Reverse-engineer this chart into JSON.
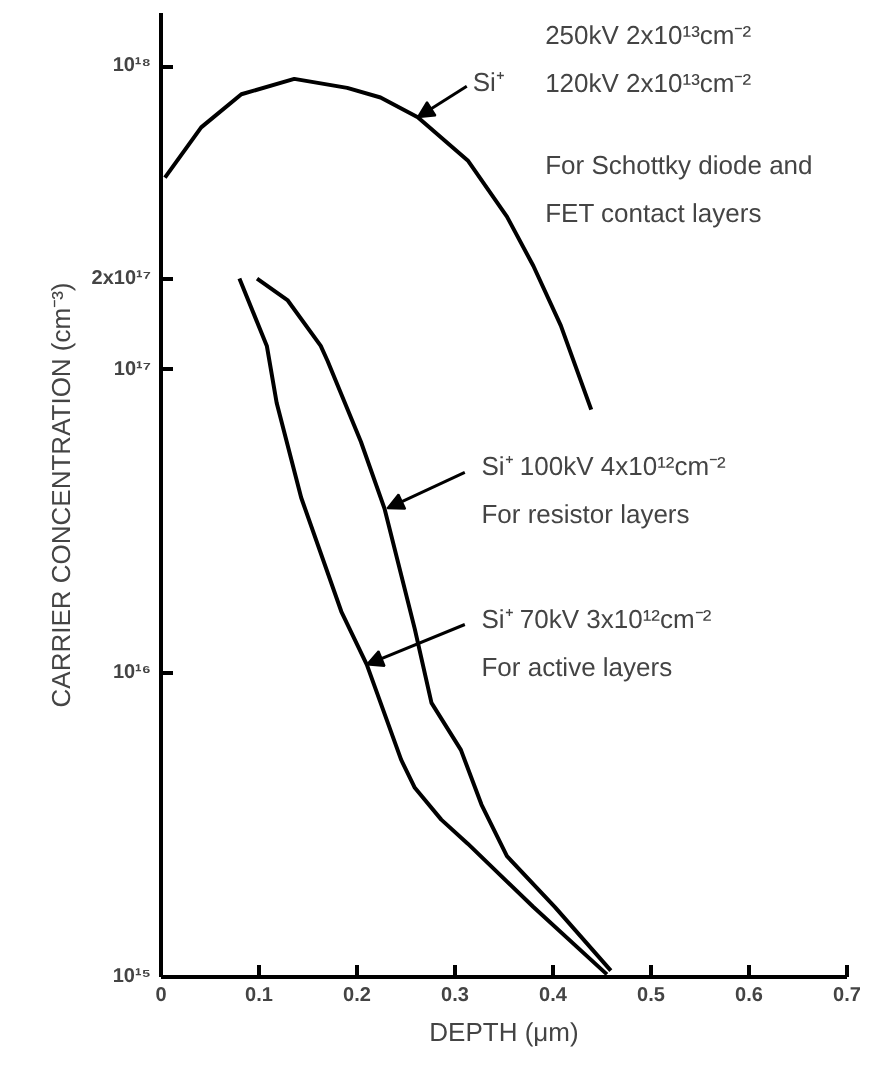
{
  "chart_data": {
    "type": "line",
    "xlabel": "DEPTH (μm)",
    "ylabel": "CARRIER CONCENTRATION (cm⁻³)",
    "log": "y",
    "grid": false,
    "marker": "none",
    "line_style": "solid",
    "xlim": [
      0,
      0.7
    ],
    "xticks": [
      0,
      0.1,
      0.2,
      0.3,
      0.4,
      0.5,
      0.6,
      0.7
    ],
    "ylim": [
      1000000000000000.0,
      1.5e+18
    ],
    "yticks": [
      {
        "value": 1000000000000000.0,
        "label": "10¹⁵"
      },
      {
        "value": 1e+16,
        "label": "10¹⁶"
      },
      {
        "value": 1e+17,
        "label": "10¹⁷"
      },
      {
        "value": 2e+17,
        "label": "2x10¹⁷"
      },
      {
        "value": 1e+18,
        "label": "10¹⁸"
      }
    ],
    "series": [
      {
        "color": "#000000",
        "x": [
          0.004,
          0.041,
          0.082,
          0.136,
          0.19,
          0.224,
          0.262,
          0.313,
          0.353,
          0.38,
          0.408,
          0.439
        ],
        "values": [
          4.3e+17,
          6.3e+17,
          8.1e+17,
          9.1e+17,
          8.5e+17,
          7.9e+17,
          6.8e+17,
          4.9e+17,
          3.2e+17,
          2.2e+17,
          1.4e+17,
          7.4e+16
        ]
      },
      {
        "color": "#000000",
        "x": [
          0.098,
          0.129,
          0.163,
          0.17,
          0.204,
          0.228,
          0.259,
          0.276,
          0.306,
          0.327,
          0.353,
          0.402,
          0.459
        ],
        "values": [
          2e+17,
          1.7e+17,
          1.2e+17,
          1.07e+17,
          5.8e+16,
          3.5e+16,
          1.4e+16,
          8000000000000000.0,
          5600000000000000.0,
          3700000000000000.0,
          2500000000000000.0,
          1700000000000000.0,
          1050000000000000.0
        ]
      },
      {
        "color": "#000000",
        "x": [
          0.08,
          0.108,
          0.118,
          0.143,
          0.184,
          0.21,
          0.245,
          0.259,
          0.286,
          0.313,
          0.38,
          0.455
        ],
        "values": [
          2e+17,
          1.2e+17,
          7.8e+16,
          3.8e+16,
          1.6e+16,
          1.07e+16,
          5200000000000000.0,
          4200000000000000.0,
          3300000000000000.0,
          2750000000000000.0,
          1700000000000000.0,
          1020000000000000.0
        ]
      }
    ],
    "annotations": [
      {
        "text": "Si⁺",
        "x": 0.262,
        "y": 6.8e+17
      },
      "250kV 2x10¹³cm⁻²\n120kV 2x10¹³cm⁻²",
      "For Schottky diode and\nFET contact layers",
      {
        "text": "Si⁺ 100kV 4x10¹²cm⁻²\nFor resistor layers",
        "x": 0.231,
        "y": 3.5e+16
      },
      {
        "text": "Si⁺ 70kV 3x10¹²cm⁻²\nFor active layers",
        "x": 0.21,
        "y": 1.07e+16
      }
    ]
  }
}
